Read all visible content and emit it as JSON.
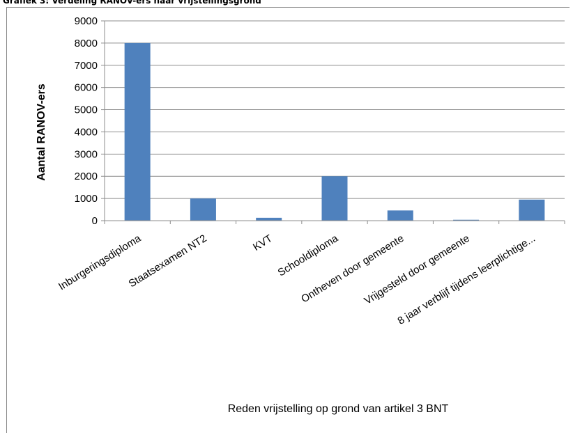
{
  "caption": "Grafiek 3: Verdeling RANOV-ers naar vrijstellingsgrond",
  "chart_data": {
    "type": "bar",
    "categories": [
      "Inburgeringsdiploma",
      "Staatsexamen NT2",
      "KVT",
      "Schooldiploma",
      "Ontheven door gemeente",
      "Vrijgesteld door gemeente",
      "8 jaar verblijf tijdens leerplichtige..."
    ],
    "values": [
      8000,
      1000,
      130,
      2000,
      460,
      40,
      950
    ],
    "ylabel": "Aantal RANOV-ers",
    "xlabel": "Reden vrijstelling op grond van artikel 3 BNT",
    "ylim": [
      0,
      9000
    ],
    "yticks": [
      0,
      1000,
      2000,
      3000,
      4000,
      5000,
      6000,
      7000,
      8000,
      9000
    ],
    "grid": true,
    "legend": "none",
    "bar_color": "#4f81bd",
    "grid_color": "#8c8c8c"
  }
}
